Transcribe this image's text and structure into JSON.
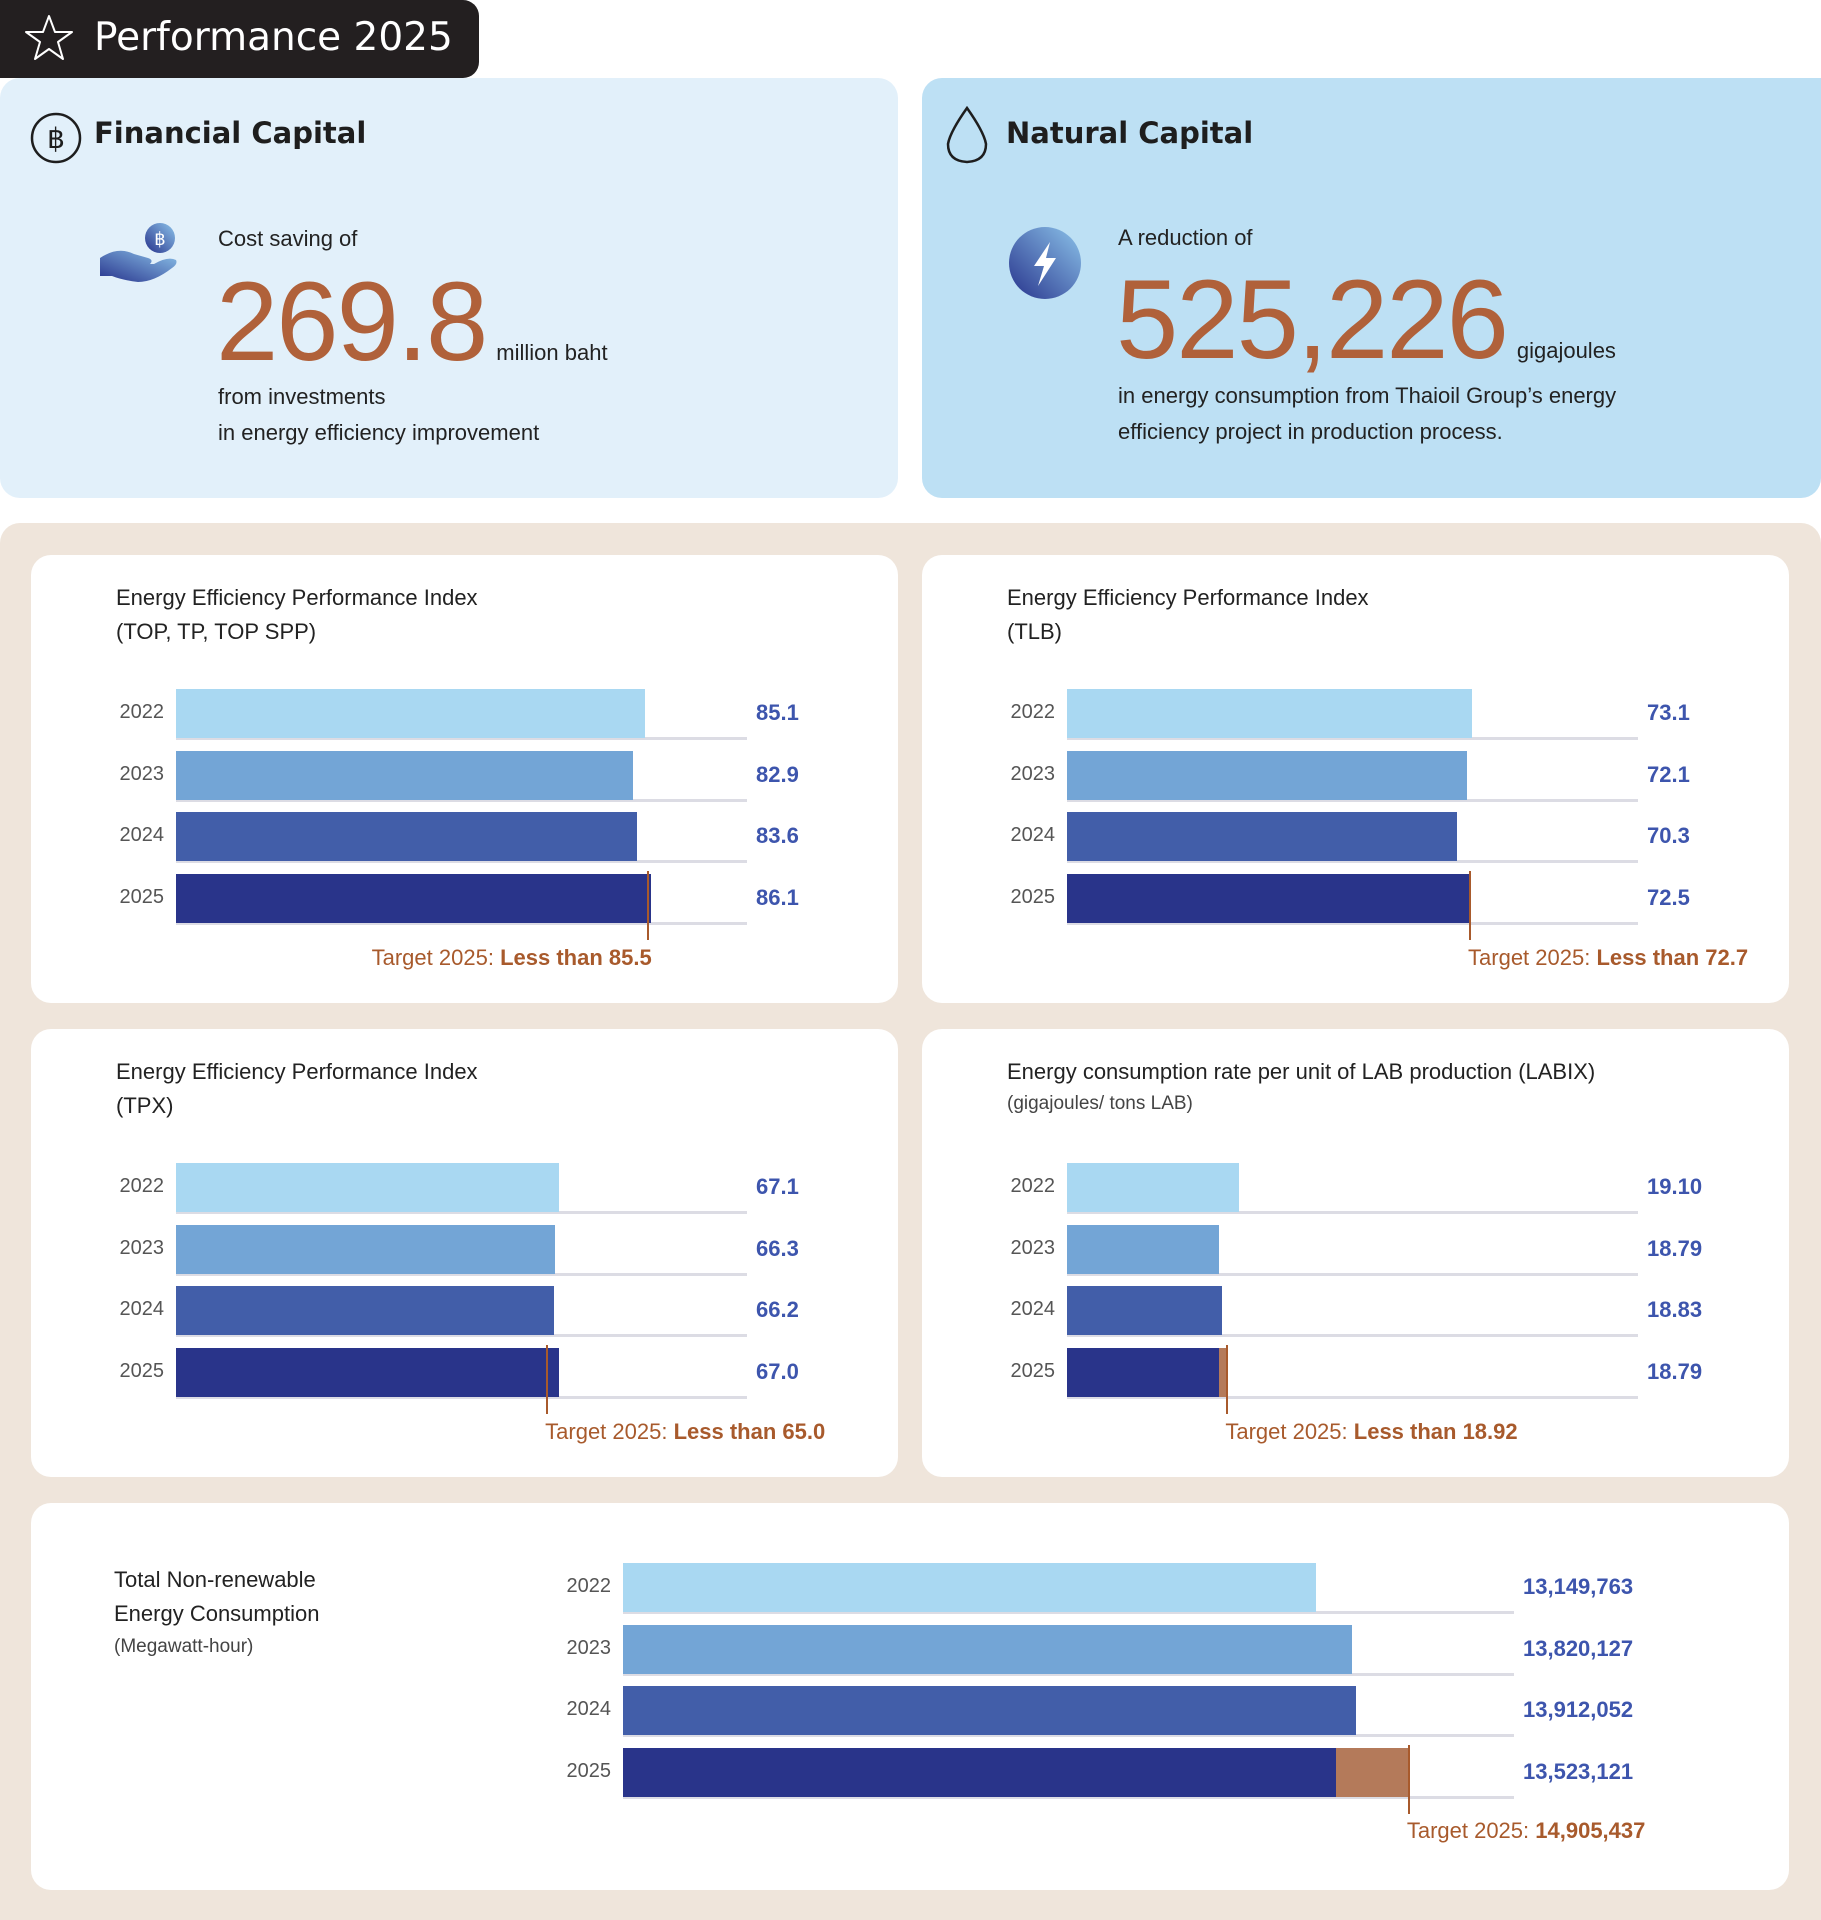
{
  "header": {
    "title": "Performance 2025",
    "icon": "star-icon"
  },
  "financial": {
    "title": "Financial Capital",
    "icon": "baht-coin-icon",
    "lead": "Cost saving of",
    "value": "269.8",
    "unit": "million baht",
    "line1": "from investments",
    "line2": "in energy efficiency improvement",
    "accent": "#b0613a"
  },
  "natural": {
    "title": "Natural Capital",
    "icon": "water-drop-icon",
    "lead": "A reduction of",
    "value": "525,226",
    "unit": "gigajoules",
    "line1": "in energy consumption from Thaioil Group’s energy",
    "line2": "efficiency project in production process."
  },
  "colors": {
    "y2022": "#a9d8f2",
    "y2023": "#73a5d6",
    "y2024": "#425ea9",
    "y2025": "#29348a",
    "gap": "#b47a5a",
    "target": "#a85a2c",
    "value": "#3d55ad"
  },
  "chart_data": [
    {
      "type": "bar",
      "title": "Energy Efficiency Performance Index",
      "subtitle": "(TOP, TP, TOP SPP)",
      "categories": [
        "2022",
        "2023",
        "2024",
        "2025"
      ],
      "values": [
        85.1,
        82.9,
        83.6,
        86.1
      ],
      "value_labels": [
        "85.1",
        "82.9",
        "83.6",
        "86.1"
      ],
      "target": 85.5,
      "target_prefix": "Target 2025: ",
      "target_label": "Less than 85.5",
      "xlim": [
        0,
        103.5
      ]
    },
    {
      "type": "bar",
      "title": "Energy Efficiency Performance Index",
      "subtitle": "(TLB)",
      "categories": [
        "2022",
        "2023",
        "2024",
        "2025"
      ],
      "values": [
        73.1,
        72.1,
        70.3,
        72.5
      ],
      "value_labels": [
        "73.1",
        "72.1",
        "70.3",
        "72.5"
      ],
      "target": 72.7,
      "target_prefix": "Target 2025: ",
      "target_label": "Less than 72.7",
      "xlim": [
        0,
        103
      ]
    },
    {
      "type": "bar",
      "title": "Energy Efficiency Performance Index",
      "subtitle": "(TPX)",
      "categories": [
        "2022",
        "2023",
        "2024",
        "2025"
      ],
      "values": [
        67.1,
        66.3,
        66.2,
        67.0
      ],
      "value_labels": [
        "67.1",
        "66.3",
        "66.2",
        "67.0"
      ],
      "target": 65.0,
      "target_prefix": "Target 2025: ",
      "target_label": "Less than 65.0",
      "xlim": [
        0,
        100
      ]
    },
    {
      "type": "bar",
      "title": "Energy consumption rate per unit of LAB production (LABIX)",
      "unit": "(gigajoules/ tons LAB)",
      "categories": [
        "2022",
        "2023",
        "2024",
        "2025"
      ],
      "values": [
        19.1,
        18.79,
        18.83,
        18.79
      ],
      "value_labels": [
        "19.10",
        "18.79",
        "18.83",
        "18.79"
      ],
      "target": 18.92,
      "target_prefix": "Target 2025: ",
      "target_label": "Less than 18.92",
      "xlim": [
        16.39,
        25.4
      ]
    },
    {
      "type": "bar",
      "title": "Total Non-renewable",
      "title2": "Energy Consumption",
      "unit": "(Megawatt-hour)",
      "categories": [
        "2022",
        "2023",
        "2024",
        "2025"
      ],
      "values": [
        13149763,
        13820127,
        13912052,
        13523121
      ],
      "value_labels": [
        "13,149,763",
        "13,820,127",
        "13,912,052",
        "13,523,121"
      ],
      "target": 14905437,
      "target_prefix": "Target 2025: ",
      "target_label": "14,905,437",
      "xlim": [
        0,
        16900000
      ]
    }
  ]
}
